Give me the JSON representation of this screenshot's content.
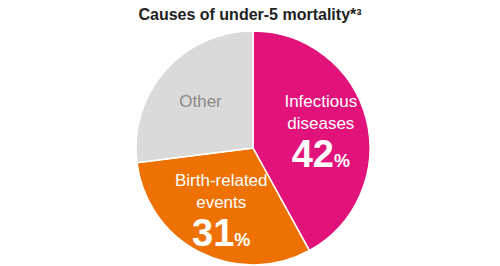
{
  "chart_data": {
    "type": "pie",
    "title": "Causes of under-5 mortality*³",
    "categories": [
      "Infectious diseases",
      "Birth-related events",
      "Other"
    ],
    "values": [
      42,
      31,
      27
    ],
    "value_labels": [
      "42%",
      "31%",
      null
    ],
    "colors": [
      "#e2127b",
      "#ee7203",
      "#dadada"
    ],
    "data_labels": true
  }
}
